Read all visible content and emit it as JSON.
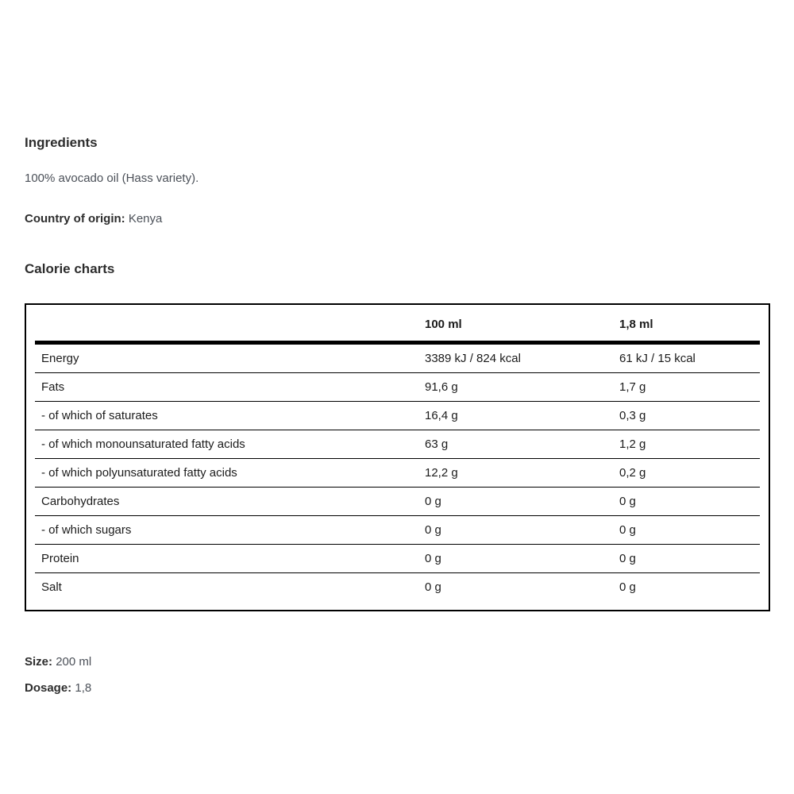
{
  "ingredients": {
    "heading": "Ingredients",
    "text": "100% avocado oil (Hass variety).",
    "origin_label": "Country of origin:",
    "origin_value": "Kenya"
  },
  "calorie_section": {
    "heading": "Calorie charts"
  },
  "chart_data": {
    "type": "table",
    "columns": [
      "",
      "100 ml",
      "1,8 ml"
    ],
    "rows": [
      [
        "Energy",
        "3389 kJ / 824 kcal",
        "61 kJ / 15 kcal"
      ],
      [
        "Fats",
        "91,6 g",
        "1,7 g"
      ],
      [
        "- of which of saturates",
        "16,4 g",
        "0,3 g"
      ],
      [
        "- of which monounsaturated fatty acids",
        "63 g",
        "1,2 g"
      ],
      [
        "- of which polyunsaturated fatty acids",
        "12,2 g",
        "0,2 g"
      ],
      [
        "Carbohydrates",
        "0 g",
        "0 g"
      ],
      [
        "- of which sugars",
        "0 g",
        "0 g"
      ],
      [
        "Protein",
        "0 g",
        "0 g"
      ],
      [
        "Salt",
        "0 g",
        "0 g"
      ]
    ],
    "border_color": "#000000"
  },
  "details": {
    "size_label": "Size:",
    "size_value": "200 ml",
    "dosage_label": "Dosage:",
    "dosage_value": "1,8"
  }
}
